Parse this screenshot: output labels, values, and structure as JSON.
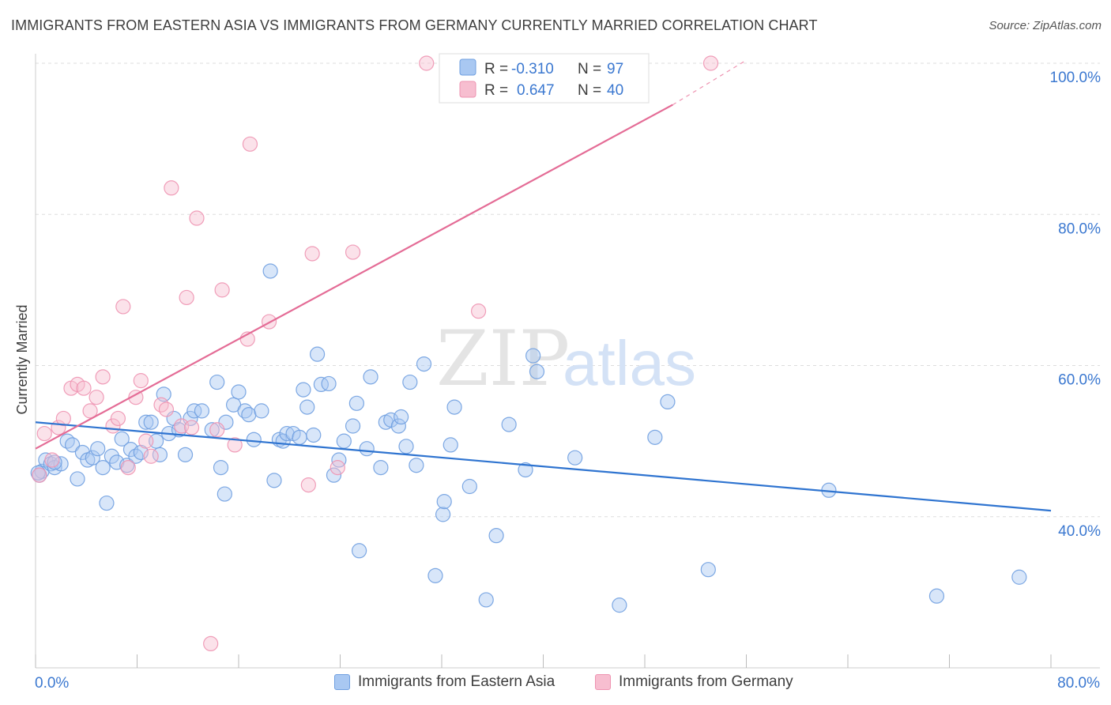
{
  "title": "IMMIGRANTS FROM EASTERN ASIA VS IMMIGRANTS FROM GERMANY CURRENTLY MARRIED CORRELATION CHART",
  "source": "Source: ZipAtlas.com",
  "watermark": {
    "zip": "ZIP",
    "atlas": "atlas"
  },
  "colors": {
    "blue_fill": "#a9c8f2",
    "blue_stroke": "#6f9fe0",
    "blue_line": "#2f74d0",
    "pink_fill": "#f7bed0",
    "pink_stroke": "#ee93b1",
    "pink_line": "#e46c96",
    "axis_text": "#3b78d0",
    "grid": "#dddddd"
  },
  "stats_legend": {
    "rows": [
      {
        "r_label": "R =",
        "r_value": "-0.310",
        "n_label": "N =",
        "n_value": "97"
      },
      {
        "r_label": "R =",
        "r_value": "0.647",
        "n_label": "N =",
        "n_value": "40"
      }
    ]
  },
  "chart_data": {
    "type": "scatter",
    "title": "IMMIGRANTS FROM EASTERN ASIA VS IMMIGRANTS FROM GERMANY CURRENTLY MARRIED CORRELATION CHART",
    "xlabel": "",
    "ylabel": "Currently Married",
    "xlim": [
      0,
      80
    ],
    "ylim": [
      20,
      101
    ],
    "x_tick_labels": [
      "0.0%",
      "80.0%"
    ],
    "y_ticks": [
      40,
      60,
      80,
      100
    ],
    "y_tick_labels": [
      "40.0%",
      "60.0%",
      "80.0%",
      "100.0%"
    ],
    "grid": true,
    "legend_placement": "bottom-center",
    "series": [
      {
        "name": "Immigrants from Eastern Asia",
        "color": "#6f9fe0",
        "r": -0.31,
        "n": 97,
        "trend": {
          "x": [
            0,
            80
          ],
          "y": [
            52.5,
            40.8
          ]
        },
        "points": [
          [
            0.3,
            45.5
          ],
          [
            0.5,
            46.0
          ],
          [
            0.8,
            47.5
          ],
          [
            1.2,
            47.0
          ],
          [
            1.5,
            46.5
          ],
          [
            2.0,
            47.0
          ],
          [
            2.5,
            50.0
          ],
          [
            2.9,
            49.5
          ],
          [
            3.3,
            45.0
          ],
          [
            3.7,
            48.5
          ],
          [
            4.1,
            47.5
          ],
          [
            4.5,
            47.8
          ],
          [
            4.9,
            49.0
          ],
          [
            5.3,
            46.5
          ],
          [
            5.6,
            41.8
          ],
          [
            6.0,
            48.0
          ],
          [
            6.4,
            47.2
          ],
          [
            6.8,
            50.3
          ],
          [
            7.2,
            46.8
          ],
          [
            7.5,
            48.9
          ],
          [
            7.9,
            48.0
          ],
          [
            8.3,
            48.5
          ],
          [
            8.7,
            52.5
          ],
          [
            9.1,
            52.5
          ],
          [
            9.5,
            50.0
          ],
          [
            9.8,
            48.2
          ],
          [
            10.1,
            56.2
          ],
          [
            10.5,
            51.0
          ],
          [
            10.9,
            53.0
          ],
          [
            11.3,
            51.5
          ],
          [
            11.8,
            48.2
          ],
          [
            12.2,
            53.0
          ],
          [
            12.5,
            54.0
          ],
          [
            13.1,
            54.0
          ],
          [
            13.9,
            51.5
          ],
          [
            14.3,
            57.8
          ],
          [
            14.6,
            46.5
          ],
          [
            15.0,
            52.5
          ],
          [
            14.9,
            43.0
          ],
          [
            15.6,
            54.8
          ],
          [
            16.0,
            56.5
          ],
          [
            16.5,
            54.0
          ],
          [
            16.8,
            53.5
          ],
          [
            17.2,
            50.2
          ],
          [
            17.8,
            54.0
          ],
          [
            18.5,
            72.5
          ],
          [
            18.8,
            44.8
          ],
          [
            19.2,
            50.2
          ],
          [
            19.5,
            50.0
          ],
          [
            19.8,
            51.0
          ],
          [
            20.3,
            51.0
          ],
          [
            20.8,
            50.5
          ],
          [
            21.1,
            56.8
          ],
          [
            21.4,
            54.5
          ],
          [
            21.9,
            50.8
          ],
          [
            22.2,
            61.5
          ],
          [
            22.5,
            57.5
          ],
          [
            23.1,
            57.6
          ],
          [
            23.5,
            45.5
          ],
          [
            23.9,
            47.5
          ],
          [
            24.3,
            50.0
          ],
          [
            25.0,
            52.0
          ],
          [
            25.3,
            55.0
          ],
          [
            25.5,
            35.5
          ],
          [
            26.1,
            49.0
          ],
          [
            26.4,
            58.5
          ],
          [
            27.2,
            46.5
          ],
          [
            27.6,
            52.5
          ],
          [
            28.0,
            52.8
          ],
          [
            28.6,
            52.0
          ],
          [
            28.8,
            53.2
          ],
          [
            29.2,
            49.3
          ],
          [
            29.5,
            57.8
          ],
          [
            30.0,
            46.8
          ],
          [
            30.6,
            60.2
          ],
          [
            31.5,
            32.2
          ],
          [
            32.1,
            40.3
          ],
          [
            32.2,
            42.0
          ],
          [
            32.7,
            49.5
          ],
          [
            33.0,
            54.5
          ],
          [
            34.2,
            44.0
          ],
          [
            35.5,
            29.0
          ],
          [
            36.3,
            37.5
          ],
          [
            37.3,
            52.2
          ],
          [
            38.6,
            46.2
          ],
          [
            39.2,
            61.3
          ],
          [
            39.5,
            59.2
          ],
          [
            42.5,
            47.8
          ],
          [
            46.0,
            28.3
          ],
          [
            48.8,
            50.5
          ],
          [
            49.8,
            55.2
          ],
          [
            53.0,
            33.0
          ],
          [
            62.5,
            43.5
          ],
          [
            71.0,
            29.5
          ],
          [
            77.5,
            32.0
          ],
          [
            0.2,
            45.8
          ],
          [
            1.5,
            47.2
          ]
        ]
      },
      {
        "name": "Immigrants from Germany",
        "color": "#ee93b1",
        "r": 0.647,
        "n": 40,
        "trend": {
          "x": [
            0,
            50.2
          ],
          "y": [
            49.0,
            94.5
          ]
        },
        "trend_dashed": {
          "x": [
            50.2,
            55.8
          ],
          "y": [
            94.5,
            100.2
          ]
        },
        "points": [
          [
            0.3,
            45.5
          ],
          [
            0.7,
            51.0
          ],
          [
            1.3,
            47.5
          ],
          [
            1.8,
            51.8
          ],
          [
            2.2,
            53.0
          ],
          [
            2.8,
            57.0
          ],
          [
            3.3,
            57.5
          ],
          [
            3.8,
            57.0
          ],
          [
            4.3,
            54.0
          ],
          [
            4.8,
            55.8
          ],
          [
            5.3,
            58.5
          ],
          [
            6.1,
            52.0
          ],
          [
            6.5,
            53.0
          ],
          [
            6.9,
            67.8
          ],
          [
            7.3,
            46.5
          ],
          [
            7.9,
            55.8
          ],
          [
            8.3,
            58.0
          ],
          [
            8.7,
            50.0
          ],
          [
            9.1,
            48.0
          ],
          [
            9.9,
            54.8
          ],
          [
            10.3,
            54.2
          ],
          [
            10.7,
            83.5
          ],
          [
            11.5,
            52.0
          ],
          [
            11.9,
            69.0
          ],
          [
            12.3,
            51.8
          ],
          [
            12.7,
            79.5
          ],
          [
            13.8,
            23.2
          ],
          [
            14.3,
            51.5
          ],
          [
            14.7,
            70.0
          ],
          [
            15.7,
            49.5
          ],
          [
            16.7,
            63.5
          ],
          [
            16.9,
            89.3
          ],
          [
            18.4,
            65.8
          ],
          [
            21.5,
            44.2
          ],
          [
            21.8,
            74.8
          ],
          [
            23.8,
            46.5
          ],
          [
            25.0,
            75.0
          ],
          [
            30.8,
            100.0
          ],
          [
            34.9,
            67.2
          ],
          [
            53.2,
            100.0
          ]
        ]
      }
    ]
  },
  "axes": {
    "ylabel": "Currently Married",
    "x_left": "0.0%",
    "x_right": "80.0%"
  },
  "bottom_legend": [
    {
      "label": "Immigrants from Eastern Asia"
    },
    {
      "label": "Immigrants from Germany"
    }
  ]
}
